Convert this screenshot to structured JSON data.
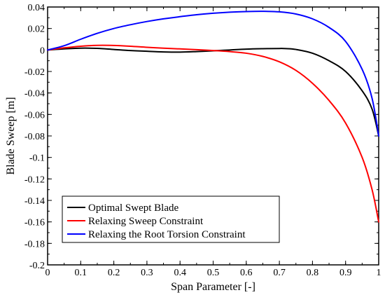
{
  "chart_data": {
    "type": "line",
    "title": "",
    "xlabel": "Span Parameter [-]",
    "ylabel": "Blade Sweep [m]",
    "xlim": [
      0,
      1
    ],
    "ylim": [
      -0.2,
      0.04
    ],
    "xticks": [
      0,
      0.1,
      0.2,
      0.3,
      0.4,
      0.5,
      0.6,
      0.7,
      0.8,
      0.9,
      1
    ],
    "xtick_labels": [
      "0",
      "0.1",
      "0.2",
      "0.3",
      "0.4",
      "0.5",
      "0.6",
      "0.7",
      "0.8",
      "0.9",
      "1"
    ],
    "yticks": [
      0.04,
      0.02,
      0,
      -0.02,
      -0.04,
      -0.06,
      -0.08,
      -0.1,
      -0.12,
      -0.14,
      -0.16,
      -0.18,
      -0.2
    ],
    "ytick_labels": [
      "0.04",
      "0.02",
      "0",
      "-0.02",
      "-0.04",
      "-0.06",
      "-0.08",
      "-0.1",
      "-0.12",
      "-0.14",
      "-0.16",
      "-0.18",
      "-0.2"
    ],
    "grid": false,
    "legend_position": "bottom-left",
    "series": [
      {
        "name": "Optimal Swept Blade",
        "color": "#000000",
        "x": [
          0,
          0.05,
          0.1,
          0.15,
          0.2,
          0.25,
          0.3,
          0.35,
          0.4,
          0.45,
          0.5,
          0.55,
          0.6,
          0.65,
          0.7,
          0.72,
          0.75,
          0.8,
          0.85,
          0.9,
          0.95,
          0.98,
          1.0
        ],
        "y": [
          0,
          0.001,
          0.0017,
          0.0015,
          0.0005,
          -0.0005,
          -0.0012,
          -0.0018,
          -0.002,
          -0.0015,
          -0.0008,
          0,
          0.0008,
          0.0012,
          0.0014,
          0.0013,
          0.0005,
          -0.003,
          -0.01,
          -0.02,
          -0.038,
          -0.055,
          -0.08
        ]
      },
      {
        "name": "Relaxing Sweep Constraint",
        "color": "#ff0000",
        "x": [
          0,
          0.05,
          0.1,
          0.15,
          0.2,
          0.25,
          0.3,
          0.35,
          0.4,
          0.45,
          0.5,
          0.55,
          0.6,
          0.65,
          0.7,
          0.75,
          0.8,
          0.85,
          0.9,
          0.95,
          0.98,
          1.0
        ],
        "y": [
          0,
          0.002,
          0.0035,
          0.0043,
          0.0042,
          0.0035,
          0.0025,
          0.0017,
          0.001,
          0.0003,
          -0.0005,
          -0.0015,
          -0.003,
          -0.006,
          -0.011,
          -0.019,
          -0.031,
          -0.047,
          -0.068,
          -0.1,
          -0.13,
          -0.16
        ]
      },
      {
        "name": "Relaxing the Root Torsion Constraint",
        "color": "#0000ff",
        "x": [
          0,
          0.05,
          0.1,
          0.15,
          0.2,
          0.25,
          0.3,
          0.35,
          0.4,
          0.45,
          0.5,
          0.55,
          0.6,
          0.65,
          0.7,
          0.75,
          0.8,
          0.85,
          0.9,
          0.95,
          0.98,
          1.0
        ],
        "y": [
          0,
          0.004,
          0.01,
          0.0155,
          0.02,
          0.0235,
          0.0265,
          0.029,
          0.031,
          0.0328,
          0.0342,
          0.0352,
          0.0358,
          0.036,
          0.0355,
          0.0335,
          0.029,
          0.021,
          0.008,
          -0.018,
          -0.045,
          -0.08
        ]
      }
    ]
  }
}
